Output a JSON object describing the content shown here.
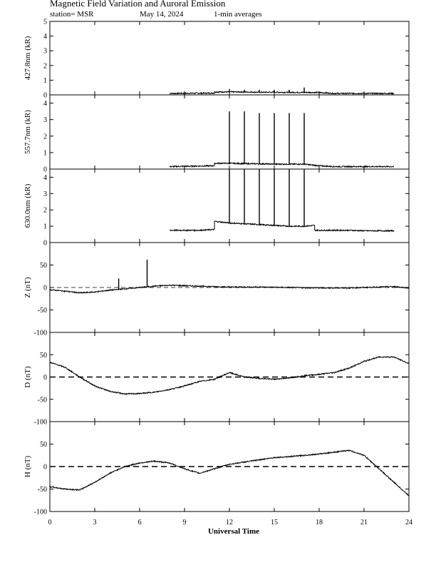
{
  "header": {
    "title": "Magnetic Field Variation and Auroral Emission",
    "station": "station= MSR",
    "date": "May 14, 2024",
    "avg": "1-min averages"
  },
  "x_axis": {
    "label": "Universal Time",
    "ticks": [
      0,
      3,
      6,
      9,
      12,
      15,
      18,
      21,
      24
    ],
    "range": [
      0,
      24
    ]
  },
  "chart_data": [
    {
      "type": "line",
      "ylabel": "427.8nm (kR)",
      "ylim": [
        0,
        5
      ],
      "yticks": [
        0,
        1,
        2,
        3,
        4,
        5
      ],
      "x": [
        8,
        11,
        11,
        12,
        13,
        14,
        15,
        16,
        17,
        18,
        19,
        20,
        21,
        22,
        23
      ],
      "values": [
        0.1,
        0.12,
        0.2,
        0.2,
        0.2,
        0.18,
        0.18,
        0.17,
        0.17,
        0.16,
        0.1,
        0.1,
        0.1,
        0.1,
        0.1
      ],
      "spikes": [
        12,
        13,
        14,
        15,
        16,
        17
      ],
      "spike_values": [
        0.4,
        0.35,
        0.35,
        0.35,
        0.35,
        0.5
      ],
      "zero_dashed": false
    },
    {
      "type": "line",
      "ylabel": "557.7nm (kR)",
      "ylim": [
        0,
        4.5
      ],
      "yticks": [
        0,
        1,
        2,
        3,
        4
      ],
      "x": [
        8,
        11,
        11,
        12,
        13,
        14,
        15,
        16,
        17,
        18,
        19,
        20,
        21,
        22,
        23
      ],
      "values": [
        0.15,
        0.2,
        0.35,
        0.35,
        0.33,
        0.32,
        0.3,
        0.3,
        0.3,
        0.2,
        0.15,
        0.15,
        0.15,
        0.15,
        0.15
      ],
      "spikes": [
        12,
        13,
        14,
        15,
        16,
        17
      ],
      "spike_values": [
        3.5,
        3.5,
        3.4,
        3.4,
        3.4,
        3.4
      ],
      "zero_dashed": false
    },
    {
      "type": "line",
      "ylabel": "630.0nm (kR)",
      "ylim": [
        0,
        4.5
      ],
      "yticks": [
        0,
        1,
        2,
        3,
        4
      ],
      "x": [
        8,
        10,
        11,
        11,
        12,
        13,
        14,
        15,
        16,
        17,
        17.7,
        17.7,
        19,
        20,
        21,
        22,
        23
      ],
      "values": [
        0.75,
        0.75,
        0.8,
        1.3,
        1.2,
        1.15,
        1.1,
        1.05,
        1.0,
        1.0,
        1.05,
        0.75,
        0.75,
        0.75,
        0.72,
        0.72,
        0.72
      ],
      "spikes": [
        12,
        13,
        14,
        15,
        16,
        17
      ],
      "spike_values": [
        4.5,
        4.5,
        4.5,
        4.5,
        4.5,
        4.5
      ],
      "zero_dashed": false
    },
    {
      "type": "line",
      "ylabel": "Z (nT)",
      "ylim": [
        -100,
        100
      ],
      "yticks": [
        -100,
        -50,
        0,
        50
      ],
      "x": [
        0,
        1,
        2,
        3,
        4,
        5,
        6,
        7,
        8,
        9,
        10,
        12,
        14,
        16,
        18,
        20,
        22,
        23,
        24
      ],
      "values": [
        -5,
        -8,
        -12,
        -10,
        -6,
        -3,
        0,
        3,
        5,
        4,
        3,
        1,
        1,
        0,
        -1,
        -1,
        1,
        2,
        -1
      ],
      "spikes": [
        4.6,
        6.5
      ],
      "spike_values": [
        20,
        62
      ],
      "zero_dashed": true
    },
    {
      "type": "line",
      "ylabel": "D (nT)",
      "ylim": [
        -100,
        100
      ],
      "yticks": [
        -100,
        -50,
        0,
        50
      ],
      "x": [
        0,
        1,
        2,
        3,
        4,
        5,
        6,
        7,
        8,
        9,
        10,
        11,
        12,
        13,
        14,
        15,
        16,
        17,
        18,
        19,
        20,
        21,
        22,
        23,
        24
      ],
      "values": [
        33,
        22,
        0,
        -20,
        -32,
        -38,
        -37,
        -34,
        -28,
        -20,
        -10,
        -5,
        10,
        0,
        -3,
        -5,
        -2,
        3,
        6,
        10,
        20,
        35,
        45,
        45,
        30
      ],
      "spikes": [],
      "spike_values": [],
      "zero_dashed": true
    },
    {
      "type": "line",
      "ylabel": "H (nT)",
      "ylim": [
        -100,
        100
      ],
      "yticks": [
        -100,
        -50,
        0,
        50
      ],
      "x": [
        0,
        1,
        2,
        3,
        4,
        5,
        6,
        7,
        8,
        9,
        10,
        11,
        12,
        13,
        14,
        15,
        16,
        17,
        18,
        19,
        20,
        21,
        22,
        23,
        24
      ],
      "values": [
        -45,
        -50,
        -52,
        -35,
        -15,
        0,
        8,
        12,
        8,
        -5,
        -15,
        -5,
        5,
        10,
        15,
        20,
        22,
        25,
        28,
        32,
        36,
        25,
        -5,
        -35,
        -65
      ],
      "spikes": [],
      "spike_values": [],
      "zero_dashed": true
    }
  ]
}
